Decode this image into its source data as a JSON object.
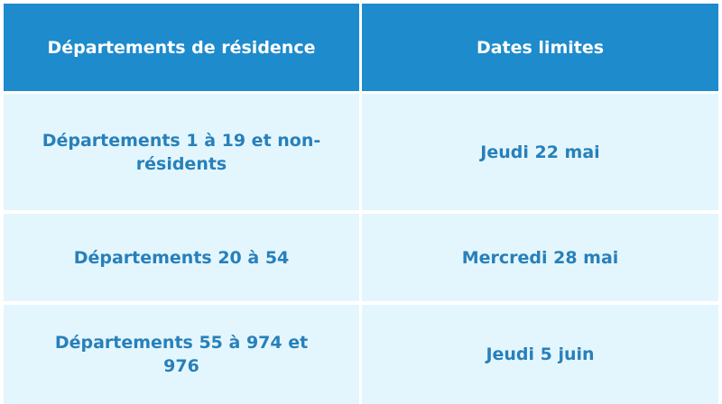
{
  "table": {
    "headers": [
      "Départements de résidence",
      "Dates limites"
    ],
    "rows": [
      [
        "Départements 1 à 19 et non-résidents",
        "Jeudi 22 mai"
      ],
      [
        "Départements 20 à 54",
        "Mercredi 28 mai"
      ],
      [
        "Départements 55 à 974 et 976",
        "Jeudi 5 juin"
      ]
    ]
  },
  "colors": {
    "header_bg": "#1e8bcc",
    "header_text": "#ffffff",
    "row_bg": "#e4f6fd",
    "row_text": "#2780bb"
  }
}
